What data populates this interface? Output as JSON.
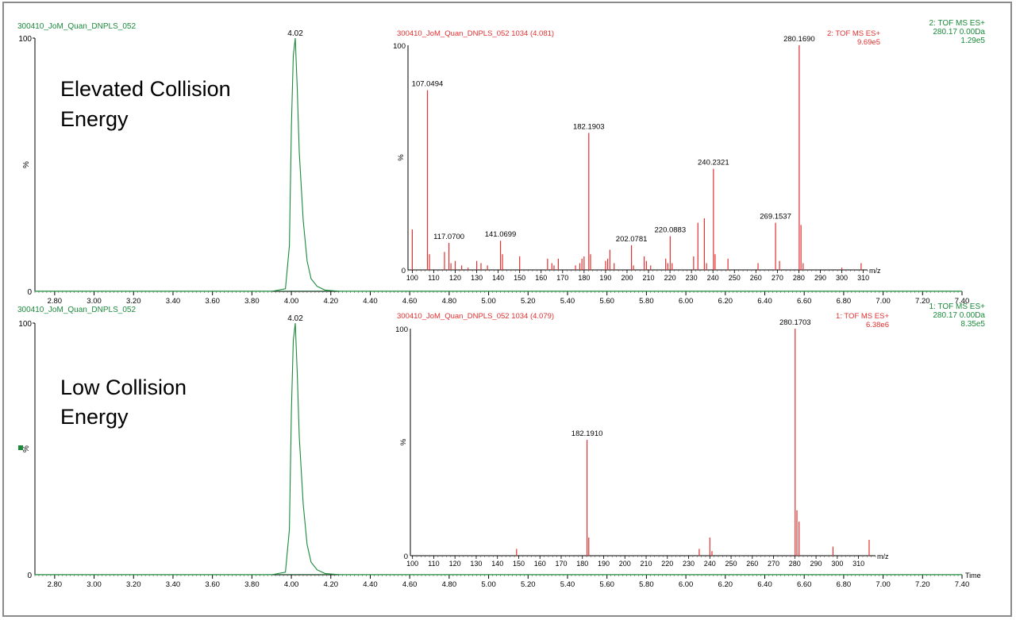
{
  "panels": [
    {
      "id": "elevated",
      "file_label": "300410_JoM_Quan_DNPLS_052",
      "header_right": [
        "2: TOF MS ES+",
        "280.17 0.00Da",
        "1.29e5"
      ],
      "panel_text": [
        "Elevated Collision",
        "Energy"
      ],
      "chrom_y_labels": [
        "100",
        "%",
        "0"
      ],
      "peak_label": "4.02",
      "inset": {
        "title": "300410_JoM_Quan_DNPLS_052 1034 (4.081)",
        "header_right": [
          "2: TOF MS ES+",
          "9.69e5"
        ],
        "y_labels": [
          "100",
          "%",
          "0"
        ],
        "x_unit": "m/z"
      }
    },
    {
      "id": "low",
      "file_label": "300410_JoM_Quan_DNPLS_052",
      "header_right": [
        "1: TOF MS ES+",
        "280.17 0.00Da",
        "8.35e5"
      ],
      "panel_text": [
        "Low Collision",
        "Energy"
      ],
      "chrom_y_labels": [
        "100",
        "%",
        "0"
      ],
      "peak_label": "4.02",
      "inset": {
        "title": "300410_JoM_Quan_DNPLS_052 1034 (4.079)",
        "header_right": [
          "1: TOF MS ES+",
          "6.38e6"
        ],
        "y_labels": [
          "100",
          "%",
          "0"
        ],
        "x_unit": "m/z"
      }
    }
  ],
  "time_axis_label": "Time",
  "colors": {
    "chromatogram": "#1a8a3a",
    "spectrum": "#e03030",
    "text": "#000000",
    "frame": "#8a8a8a"
  },
  "chart_data": [
    {
      "type": "line",
      "title": "300410_JoM_Quan_DNPLS_052",
      "xlabel": "Time",
      "ylabel": "%",
      "xlim": [
        2.7,
        7.4
      ],
      "ylim": [
        0,
        100
      ],
      "x_ticks": [
        "2.80",
        "3.00",
        "3.20",
        "3.40",
        "3.60",
        "3.80",
        "4.00",
        "4.20",
        "4.40",
        "4.60",
        "4.80",
        "5.00",
        "5.20",
        "5.40",
        "5.60",
        "5.80",
        "6.00",
        "6.20",
        "6.40",
        "6.60",
        "6.80",
        "7.00",
        "7.20",
        "7.40"
      ],
      "series": [
        {
          "x": [
            2.7,
            3.9,
            3.97,
            3.99,
            4.0,
            4.01,
            4.02,
            4.03,
            4.04,
            4.06,
            4.08,
            4.1,
            4.13,
            4.17,
            4.25,
            7.4
          ],
          "y": [
            0,
            0,
            1,
            18,
            65,
            93,
            100,
            80,
            55,
            28,
            12,
            5,
            2,
            0.5,
            0,
            0
          ]
        }
      ],
      "annotations": [
        "4.02"
      ]
    },
    {
      "type": "bar",
      "title": "300410_JoM_Quan_DNPLS_052 1034 (4.081)",
      "xlabel": "m/z",
      "ylabel": "%",
      "xlim": [
        98,
        312
      ],
      "ylim": [
        0,
        100
      ],
      "x_ticks": [
        100,
        110,
        120,
        130,
        140,
        150,
        160,
        170,
        180,
        190,
        200,
        210,
        220,
        230,
        240,
        250,
        260,
        270,
        280,
        290,
        300,
        310
      ],
      "x": [
        100,
        107.0494,
        108,
        115,
        117.07,
        118,
        120,
        123,
        126,
        130,
        132,
        135,
        141.0699,
        142,
        150,
        163,
        165,
        166,
        168,
        176,
        178,
        179,
        180,
        182.1903,
        183,
        190,
        191,
        192,
        194,
        202.0781,
        203,
        208,
        209,
        211,
        218,
        219,
        220.0883,
        221,
        231,
        233,
        236,
        237,
        240.2321,
        241,
        247,
        261,
        269.1537,
        271,
        280.169,
        281,
        282,
        300,
        309
      ],
      "values": [
        18,
        80,
        7,
        8,
        12,
        3,
        4,
        2,
        1,
        4,
        3,
        2,
        13,
        7,
        6,
        5,
        3,
        2,
        5,
        2,
        3,
        5,
        6,
        61,
        7,
        4,
        5,
        9,
        3,
        11,
        2,
        6,
        4,
        2,
        5,
        3,
        15,
        3,
        6,
        21,
        23,
        3,
        45,
        7,
        5,
        3,
        21,
        4,
        100,
        20,
        3,
        1,
        3
      ],
      "labels": [
        "107.0494",
        "117.0700",
        "141.0699",
        "182.1903",
        "202.0781",
        "220.0883",
        "240.2321",
        "269.1537",
        "280.1690"
      ]
    },
    {
      "type": "line",
      "title": "300410_JoM_Quan_DNPLS_052",
      "xlabel": "Time",
      "ylabel": "%",
      "xlim": [
        2.7,
        7.4
      ],
      "ylim": [
        0,
        100
      ],
      "x_ticks": [
        "2.80",
        "3.00",
        "3.20",
        "3.40",
        "3.60",
        "3.80",
        "4.00",
        "4.20",
        "4.40",
        "4.60",
        "4.80",
        "5.00",
        "5.20",
        "5.40",
        "5.60",
        "5.80",
        "6.00",
        "6.20",
        "6.40",
        "6.60",
        "6.80",
        "7.00",
        "7.20",
        "7.40"
      ],
      "series": [
        {
          "x": [
            2.7,
            3.9,
            3.97,
            3.99,
            4.0,
            4.01,
            4.02,
            4.03,
            4.04,
            4.06,
            4.08,
            4.1,
            4.13,
            4.17,
            4.25,
            7.4
          ],
          "y": [
            0,
            0,
            1,
            18,
            65,
            93,
            100,
            80,
            55,
            28,
            12,
            5,
            2,
            0.5,
            0,
            0
          ]
        }
      ],
      "annotations": [
        "4.02"
      ]
    },
    {
      "type": "bar",
      "title": "300410_JoM_Quan_DNPLS_052 1034 (4.079)",
      "xlabel": "m/z",
      "ylabel": "%",
      "xlim": [
        99,
        318
      ],
      "ylim": [
        0,
        100
      ],
      "x_ticks": [
        100,
        110,
        120,
        130,
        140,
        150,
        160,
        170,
        180,
        190,
        200,
        210,
        220,
        230,
        240,
        250,
        260,
        270,
        280,
        290,
        300,
        310
      ],
      "x": [
        149,
        182.191,
        183,
        235,
        240,
        241,
        280.1703,
        281,
        282,
        298,
        315
      ],
      "values": [
        3,
        51,
        8,
        3,
        8,
        2,
        100,
        20,
        15,
        4,
        7
      ],
      "labels": [
        "182.1910",
        "280.1703"
      ]
    }
  ]
}
